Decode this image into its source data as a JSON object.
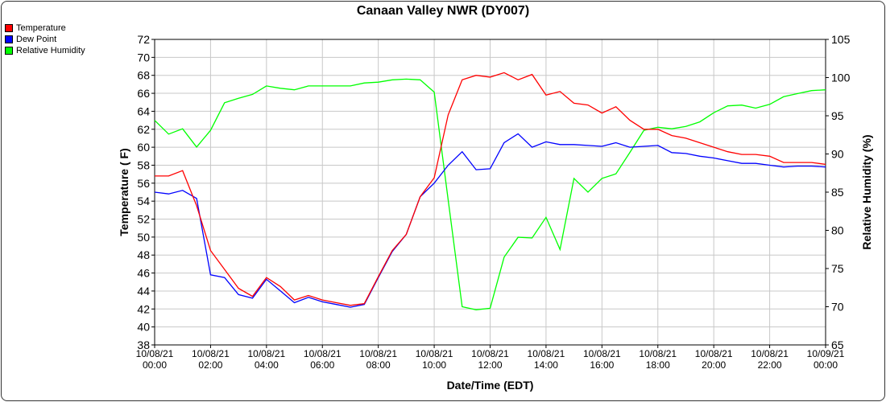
{
  "chart_data": {
    "type": "line",
    "title": "Canaan Valley NWR (DY007)",
    "xlabel": "Date/Time (EDT)",
    "ylabel": "Temperature ( F)",
    "y2label": "Relative Humidity (%)",
    "ylim": [
      38,
      72
    ],
    "y2lim": [
      65,
      105
    ],
    "yticks": [
      38,
      40,
      42,
      44,
      46,
      48,
      50,
      52,
      54,
      56,
      58,
      60,
      62,
      64,
      66,
      68,
      70,
      72
    ],
    "y2ticks": [
      65,
      70,
      75,
      80,
      85,
      90,
      95,
      100,
      105
    ],
    "xticks": [
      {
        "hour": 0,
        "date": "10/08/21",
        "time": "00:00"
      },
      {
        "hour": 2,
        "date": "10/08/21",
        "time": "02:00"
      },
      {
        "hour": 4,
        "date": "10/08/21",
        "time": "04:00"
      },
      {
        "hour": 6,
        "date": "10/08/21",
        "time": "06:00"
      },
      {
        "hour": 8,
        "date": "10/08/21",
        "time": "08:00"
      },
      {
        "hour": 10,
        "date": "10/08/21",
        "time": "10:00"
      },
      {
        "hour": 12,
        "date": "10/08/21",
        "time": "12:00"
      },
      {
        "hour": 14,
        "date": "10/08/21",
        "time": "14:00"
      },
      {
        "hour": 16,
        "date": "10/08/21",
        "time": "16:00"
      },
      {
        "hour": 18,
        "date": "10/08/21",
        "time": "18:00"
      },
      {
        "hour": 20,
        "date": "10/08/21",
        "time": "20:00"
      },
      {
        "hour": 22,
        "date": "10/08/21",
        "time": "22:00"
      },
      {
        "hour": 24,
        "date": "10/09/21",
        "time": "00:00"
      }
    ],
    "grid": true,
    "legend_position": "top-left",
    "x_hours_step": 0.5,
    "series": [
      {
        "name": "Temperature",
        "axis": "left",
        "color": "#ff0000",
        "values": [
          56.8,
          56.8,
          57.4,
          53.5,
          48.5,
          46.4,
          44.3,
          43.4,
          45.5,
          44.5,
          43.0,
          43.5,
          43.0,
          42.7,
          42.4,
          42.6,
          45.6,
          48.5,
          50.3,
          54.5,
          56.6,
          63.6,
          67.5,
          68.0,
          67.8,
          68.3,
          67.5,
          68.1,
          65.8,
          66.2,
          64.9,
          64.7,
          63.8,
          64.5,
          63.0,
          62.0,
          62.0,
          61.3,
          61.0,
          60.5,
          60.0,
          59.5,
          59.2,
          59.2,
          59.0,
          58.3,
          58.3,
          58.3,
          58.1
        ]
      },
      {
        "name": "Dew Point",
        "axis": "left",
        "color": "#0000ff",
        "values": [
          55.0,
          54.8,
          55.2,
          54.3,
          45.8,
          45.5,
          43.6,
          43.2,
          45.3,
          44.0,
          42.7,
          43.3,
          42.8,
          42.5,
          42.2,
          42.5,
          45.5,
          48.4,
          50.3,
          54.5,
          56.0,
          58.0,
          59.5,
          57.5,
          57.6,
          60.5,
          61.5,
          60.0,
          60.6,
          60.3,
          60.3,
          60.2,
          60.1,
          60.5,
          60.0,
          60.1,
          60.2,
          59.4,
          59.3,
          59.0,
          58.8,
          58.5,
          58.2,
          58.2,
          58.0,
          57.8,
          57.9,
          57.9,
          57.8
        ]
      },
      {
        "name": "Relative Humidity",
        "axis": "right",
        "color": "#00ff00",
        "values": [
          94.4,
          92.6,
          93.3,
          90.9,
          93.1,
          96.7,
          97.3,
          97.8,
          98.9,
          98.6,
          98.4,
          98.9,
          98.9,
          98.9,
          98.9,
          99.3,
          99.4,
          99.7,
          99.8,
          99.7,
          98.1,
          84.0,
          70.0,
          69.6,
          69.8,
          76.5,
          79.1,
          79.0,
          81.7,
          77.5,
          86.8,
          85.0,
          86.8,
          87.4,
          90.2,
          93.1,
          93.5,
          93.3,
          93.6,
          94.2,
          95.4,
          96.3,
          96.4,
          96.0,
          96.5,
          97.5,
          97.9,
          98.3,
          98.4
        ]
      }
    ]
  }
}
